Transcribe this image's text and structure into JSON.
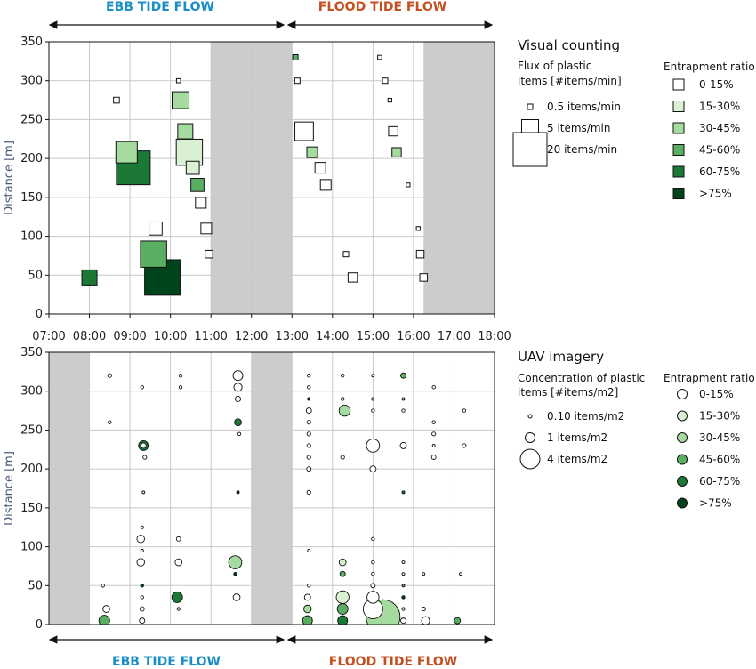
{
  "colors": {
    "ebb": "#1a8fc4",
    "flood": "#c4501f",
    "shade": "#cccccc",
    "grid": "#c8c8c8",
    "ratio": [
      "#ffffff",
      "#d9f0d3",
      "#a6dba0",
      "#5aae61",
      "#1b7837",
      "#00441b"
    ]
  },
  "top_labels": {
    "ebb": "EBB TIDE FLOW",
    "flood": "FLOOD TIDE FLOW"
  },
  "bottom_labels": {
    "ebb": "EBB TIDE FLOW",
    "flood": "FLOOD TIDE FLOW"
  },
  "legend_top": {
    "title": "Visual counting",
    "size_title_1": "Flux of plastic",
    "size_title_2": "items [#items/min]",
    "sizes": [
      "0.5 items/min",
      "5 items/min",
      "20 items/min"
    ],
    "ratio_title": "Entrapment ratio",
    "ratios": [
      "0-15%",
      "15-30%",
      "30-45%",
      "45-60%",
      "60-75%",
      ">75%"
    ]
  },
  "legend_bottom": {
    "title": "UAV imagery",
    "size_title_1": "Concentration of plastic",
    "size_title_2": "items [#items/m2]",
    "sizes": [
      "0.10 items/m2",
      "1 items/m2",
      "4 items/m2"
    ],
    "ratio_title": "Entrapment ratio",
    "ratios": [
      "0-15%",
      "15-30%",
      "30-45%",
      "45-60%",
      "60-75%",
      ">75%"
    ]
  },
  "chart_data": [
    {
      "type": "scatter",
      "title": "Visual counting",
      "xlabel": "",
      "ylabel": "Distance [m]",
      "x_ticks": [
        "07:00",
        "08:00",
        "09:00",
        "10:00",
        "11:00",
        "12:00",
        "13:00",
        "14:00",
        "15:00",
        "16:00",
        "17:00",
        "18:00"
      ],
      "y_ticks": [
        0,
        50,
        100,
        150,
        200,
        250,
        300,
        350
      ],
      "xlim": [
        "07:00",
        "18:00"
      ],
      "ylim": [
        0,
        350
      ],
      "grid": true,
      "shaded_time_ranges": [
        [
          "11:00",
          "13:00"
        ],
        [
          "16:15",
          "18:00"
        ]
      ],
      "marker": "square",
      "points": [
        {
          "time": "08:00",
          "distance": 47,
          "flux": 4,
          "ratio_class": 4
        },
        {
          "time": "08:40",
          "distance": 275,
          "flux": 0.6,
          "ratio_class": 0
        },
        {
          "time": "08:55",
          "distance": 208,
          "flux": 8,
          "ratio_class": 2
        },
        {
          "time": "09:05",
          "distance": 188,
          "flux": 20,
          "ratio_class": 4
        },
        {
          "time": "09:35",
          "distance": 77,
          "flux": 12,
          "ratio_class": 3
        },
        {
          "time": "09:38",
          "distance": 110,
          "flux": 3,
          "ratio_class": 0
        },
        {
          "time": "09:48",
          "distance": 47,
          "flux": 22,
          "ratio_class": 5
        },
        {
          "time": "10:12",
          "distance": 300,
          "flux": 0.3,
          "ratio_class": 0
        },
        {
          "time": "10:15",
          "distance": 275,
          "flux": 5,
          "ratio_class": 2
        },
        {
          "time": "10:22",
          "distance": 235,
          "flux": 4,
          "ratio_class": 2
        },
        {
          "time": "10:28",
          "distance": 208,
          "flux": 12,
          "ratio_class": 1
        },
        {
          "time": "10:33",
          "distance": 188,
          "flux": 3,
          "ratio_class": 1
        },
        {
          "time": "10:40",
          "distance": 166,
          "flux": 3,
          "ratio_class": 3
        },
        {
          "time": "10:45",
          "distance": 143,
          "flux": 2,
          "ratio_class": 0
        },
        {
          "time": "10:53",
          "distance": 110,
          "flux": 2,
          "ratio_class": 0
        },
        {
          "time": "10:57",
          "distance": 77,
          "flux": 1,
          "ratio_class": 0
        },
        {
          "time": "13:05",
          "distance": 330,
          "flux": 0.5,
          "ratio_class": 3
        },
        {
          "time": "13:08",
          "distance": 300,
          "flux": 0.5,
          "ratio_class": 0
        },
        {
          "time": "13:18",
          "distance": 235,
          "flux": 6,
          "ratio_class": 0
        },
        {
          "time": "13:30",
          "distance": 208,
          "flux": 2,
          "ratio_class": 2
        },
        {
          "time": "13:42",
          "distance": 188,
          "flux": 2,
          "ratio_class": 0
        },
        {
          "time": "13:50",
          "distance": 166,
          "flux": 2,
          "ratio_class": 0
        },
        {
          "time": "14:20",
          "distance": 77,
          "flux": 0.5,
          "ratio_class": 0
        },
        {
          "time": "14:30",
          "distance": 47,
          "flux": 1.5,
          "ratio_class": 0
        },
        {
          "time": "15:10",
          "distance": 330,
          "flux": 0.3,
          "ratio_class": 0
        },
        {
          "time": "15:18",
          "distance": 300,
          "flux": 0.5,
          "ratio_class": 0
        },
        {
          "time": "15:25",
          "distance": 275,
          "flux": 0.25,
          "ratio_class": 0
        },
        {
          "time": "15:30",
          "distance": 235,
          "flux": 1.5,
          "ratio_class": 0
        },
        {
          "time": "15:35",
          "distance": 208,
          "flux": 1.5,
          "ratio_class": 2
        },
        {
          "time": "15:52",
          "distance": 166,
          "flux": 0.25,
          "ratio_class": 0
        },
        {
          "time": "16:07",
          "distance": 110,
          "flux": 0.25,
          "ratio_class": 0
        },
        {
          "time": "16:10",
          "distance": 77,
          "flux": 1,
          "ratio_class": 0
        },
        {
          "time": "16:15",
          "distance": 47,
          "flux": 1,
          "ratio_class": 0
        }
      ]
    },
    {
      "type": "scatter",
      "title": "UAV imagery",
      "xlabel": "",
      "ylabel": "Distance [m]",
      "y_ticks": [
        0,
        50,
        100,
        150,
        200,
        250,
        300,
        350
      ],
      "xlim": [
        "07:00",
        "18:00"
      ],
      "ylim": [
        0,
        350
      ],
      "grid": true,
      "shaded_time_ranges": [
        [
          "07:00",
          "08:00"
        ],
        [
          "12:00",
          "13:00"
        ]
      ],
      "marker": "circle",
      "points": [
        {
          "time": "08:20",
          "distance": 50,
          "conc": 0.1,
          "ratio_class": 0
        },
        {
          "time": "08:25",
          "distance": 20,
          "conc": 0.5,
          "ratio_class": 0
        },
        {
          "time": "08:22",
          "distance": 5,
          "conc": 1.2,
          "ratio_class": 3
        },
        {
          "time": "08:30",
          "distance": 320,
          "conc": 0.15,
          "ratio_class": 0
        },
        {
          "time": "08:30",
          "distance": 260,
          "conc": 0.1,
          "ratio_class": 0
        },
        {
          "time": "09:18",
          "distance": 305,
          "conc": 0.1,
          "ratio_class": 0
        },
        {
          "time": "09:20",
          "distance": 230,
          "conc": 1,
          "ratio_class": 4
        },
        {
          "time": "09:20",
          "distance": 230,
          "conc": 0.3,
          "ratio_class": 0
        },
        {
          "time": "09:22",
          "distance": 215,
          "conc": 0.15,
          "ratio_class": 0
        },
        {
          "time": "09:20",
          "distance": 170,
          "conc": 0.05,
          "ratio_class": 0
        },
        {
          "time": "09:18",
          "distance": 125,
          "conc": 0.08,
          "ratio_class": 0
        },
        {
          "time": "09:16",
          "distance": 110,
          "conc": 0.6,
          "ratio_class": 0
        },
        {
          "time": "09:18",
          "distance": 95,
          "conc": 0.08,
          "ratio_class": 0
        },
        {
          "time": "09:16",
          "distance": 80,
          "conc": 0.6,
          "ratio_class": 0
        },
        {
          "time": "09:18",
          "distance": 50,
          "conc": 0.1,
          "ratio_class": 5
        },
        {
          "time": "09:18",
          "distance": 35,
          "conc": 0.1,
          "ratio_class": 0
        },
        {
          "time": "09:18",
          "distance": 20,
          "conc": 0.2,
          "ratio_class": 0
        },
        {
          "time": "09:18",
          "distance": 5,
          "conc": 0.3,
          "ratio_class": 0
        },
        {
          "time": "10:15",
          "distance": 320,
          "conc": 0.1,
          "ratio_class": 0
        },
        {
          "time": "10:15",
          "distance": 305,
          "conc": 0.1,
          "ratio_class": 0
        },
        {
          "time": "10:12",
          "distance": 110,
          "conc": 0.2,
          "ratio_class": 0
        },
        {
          "time": "10:12",
          "distance": 80,
          "conc": 0.5,
          "ratio_class": 0
        },
        {
          "time": "10:10",
          "distance": 35,
          "conc": 1.2,
          "ratio_class": 4
        },
        {
          "time": "10:12",
          "distance": 20,
          "conc": 0.1,
          "ratio_class": 0
        },
        {
          "time": "11:40",
          "distance": 320,
          "conc": 1,
          "ratio_class": 0
        },
        {
          "time": "11:40",
          "distance": 305,
          "conc": 0.7,
          "ratio_class": 0
        },
        {
          "time": "11:40",
          "distance": 290,
          "conc": 0.3,
          "ratio_class": 0
        },
        {
          "time": "11:40",
          "distance": 260,
          "conc": 0.5,
          "ratio_class": 4
        },
        {
          "time": "11:42",
          "distance": 245,
          "conc": 0.1,
          "ratio_class": 0
        },
        {
          "time": "11:40",
          "distance": 170,
          "conc": 0.05,
          "ratio_class": 5
        },
        {
          "time": "11:36",
          "distance": 80,
          "conc": 1.8,
          "ratio_class": 2
        },
        {
          "time": "11:36",
          "distance": 65,
          "conc": 0.1,
          "ratio_class": 5
        },
        {
          "time": "11:38",
          "distance": 35,
          "conc": 0.5,
          "ratio_class": 0
        },
        {
          "time": "13:25",
          "distance": 320,
          "conc": 0.1,
          "ratio_class": 0
        },
        {
          "time": "13:25",
          "distance": 305,
          "conc": 0.1,
          "ratio_class": 0
        },
        {
          "time": "13:25",
          "distance": 290,
          "conc": 0.05,
          "ratio_class": 5
        },
        {
          "time": "13:25",
          "distance": 275,
          "conc": 0.3,
          "ratio_class": 0
        },
        {
          "time": "13:25",
          "distance": 260,
          "conc": 0.15,
          "ratio_class": 0
        },
        {
          "time": "13:25",
          "distance": 245,
          "conc": 0.15,
          "ratio_class": 0
        },
        {
          "time": "13:25",
          "distance": 230,
          "conc": 0.15,
          "ratio_class": 0
        },
        {
          "time": "13:25",
          "distance": 215,
          "conc": 0.15,
          "ratio_class": 0
        },
        {
          "time": "13:25",
          "distance": 200,
          "conc": 0.2,
          "ratio_class": 0
        },
        {
          "time": "13:25",
          "distance": 170,
          "conc": 0.15,
          "ratio_class": 0
        },
        {
          "time": "13:25",
          "distance": 95,
          "conc": 0.05,
          "ratio_class": 0
        },
        {
          "time": "13:25",
          "distance": 50,
          "conc": 0.1,
          "ratio_class": 0
        },
        {
          "time": "13:23",
          "distance": 35,
          "conc": 0.4,
          "ratio_class": 0
        },
        {
          "time": "13:23",
          "distance": 20,
          "conc": 0.6,
          "ratio_class": 2
        },
        {
          "time": "13:23",
          "distance": 5,
          "conc": 1,
          "ratio_class": 3
        },
        {
          "time": "14:15",
          "distance": 320,
          "conc": 0.1,
          "ratio_class": 0
        },
        {
          "time": "14:15",
          "distance": 290,
          "conc": 0.1,
          "ratio_class": 0
        },
        {
          "time": "14:18",
          "distance": 275,
          "conc": 1.3,
          "ratio_class": 2
        },
        {
          "time": "14:15",
          "distance": 215,
          "conc": 0.15,
          "ratio_class": 0
        },
        {
          "time": "14:15",
          "distance": 80,
          "conc": 0.5,
          "ratio_class": 1
        },
        {
          "time": "14:15",
          "distance": 65,
          "conc": 0.3,
          "ratio_class": 3
        },
        {
          "time": "14:15",
          "distance": 35,
          "conc": 1.7,
          "ratio_class": 1
        },
        {
          "time": "14:15",
          "distance": 20,
          "conc": 1.2,
          "ratio_class": 3
        },
        {
          "time": "14:15",
          "distance": 5,
          "conc": 1,
          "ratio_class": 4
        },
        {
          "time": "15:00",
          "distance": 320,
          "conc": 0.05,
          "ratio_class": 0
        },
        {
          "time": "15:00",
          "distance": 290,
          "conc": 0.08,
          "ratio_class": 0
        },
        {
          "time": "15:00",
          "distance": 275,
          "conc": 0.1,
          "ratio_class": 0
        },
        {
          "time": "15:00",
          "distance": 230,
          "conc": 1.8,
          "ratio_class": 0
        },
        {
          "time": "15:00",
          "distance": 200,
          "conc": 0.4,
          "ratio_class": 0
        },
        {
          "time": "15:00",
          "distance": 110,
          "conc": 0.1,
          "ratio_class": 0
        },
        {
          "time": "15:00",
          "distance": 80,
          "conc": 0.1,
          "ratio_class": 0
        },
        {
          "time": "15:00",
          "distance": 65,
          "conc": 0.1,
          "ratio_class": 0
        },
        {
          "time": "15:00",
          "distance": 50,
          "conc": 0.2,
          "ratio_class": 0
        },
        {
          "time": "15:00",
          "distance": 35,
          "conc": 1.5,
          "ratio_class": 0
        },
        {
          "time": "15:00",
          "distance": 20,
          "conc": 4,
          "ratio_class": 0
        },
        {
          "time": "15:15",
          "distance": 10,
          "conc": 12,
          "ratio_class": 2
        },
        {
          "time": "15:45",
          "distance": 320,
          "conc": 0.3,
          "ratio_class": 3
        },
        {
          "time": "15:45",
          "distance": 290,
          "conc": 0.05,
          "ratio_class": 0
        },
        {
          "time": "15:45",
          "distance": 275,
          "conc": 0.1,
          "ratio_class": 0
        },
        {
          "time": "15:45",
          "distance": 230,
          "conc": 0.4,
          "ratio_class": 0
        },
        {
          "time": "15:45",
          "distance": 170,
          "conc": 0.08,
          "ratio_class": 4
        },
        {
          "time": "15:45",
          "distance": 80,
          "conc": 0.05,
          "ratio_class": 0
        },
        {
          "time": "15:45",
          "distance": 65,
          "conc": 0.05,
          "ratio_class": 0
        },
        {
          "time": "15:45",
          "distance": 50,
          "conc": 0.05,
          "ratio_class": 3
        },
        {
          "time": "15:45",
          "distance": 35,
          "conc": 0.1,
          "ratio_class": 5
        },
        {
          "time": "15:45",
          "distance": 20,
          "conc": 0.1,
          "ratio_class": 0
        },
        {
          "time": "15:45",
          "distance": 5,
          "conc": 0.3,
          "ratio_class": 0
        },
        {
          "time": "16:30",
          "distance": 305,
          "conc": 0.1,
          "ratio_class": 0
        },
        {
          "time": "16:30",
          "distance": 260,
          "conc": 0.1,
          "ratio_class": 0
        },
        {
          "time": "16:30",
          "distance": 245,
          "conc": 0.15,
          "ratio_class": 0
        },
        {
          "time": "16:30",
          "distance": 230,
          "conc": 0.05,
          "ratio_class": 0
        },
        {
          "time": "16:30",
          "distance": 215,
          "conc": 0.2,
          "ratio_class": 0
        },
        {
          "time": "16:15",
          "distance": 65,
          "conc": 0.05,
          "ratio_class": 0
        },
        {
          "time": "16:15",
          "distance": 20,
          "conc": 0.15,
          "ratio_class": 0
        },
        {
          "time": "16:18",
          "distance": 5,
          "conc": 0.7,
          "ratio_class": 0
        },
        {
          "time": "17:15",
          "distance": 275,
          "conc": 0.1,
          "ratio_class": 0
        },
        {
          "time": "17:15",
          "distance": 230,
          "conc": 0.15,
          "ratio_class": 0
        },
        {
          "time": "17:10",
          "distance": 65,
          "conc": 0.05,
          "ratio_class": 0
        },
        {
          "time": "17:05",
          "distance": 5,
          "conc": 0.4,
          "ratio_class": 3
        }
      ]
    }
  ]
}
